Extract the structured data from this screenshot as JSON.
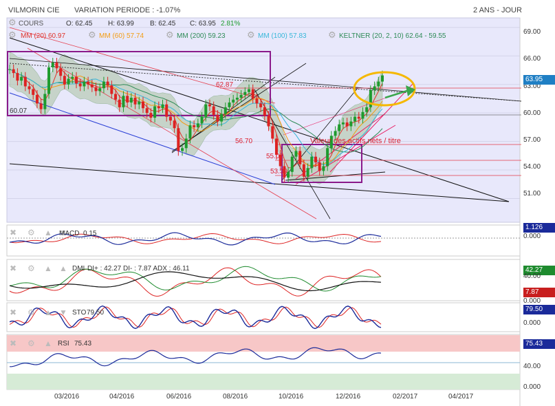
{
  "header": {
    "title": "VILMORIN CIE",
    "variation": "VARIATION PERIODE : -1.07%",
    "period": "2 ANS - JOUR"
  },
  "quote": {
    "cours_label": "COURS",
    "o": "O: 62.45",
    "h": "H: 63.99",
    "b": "B: 62.45",
    "c": "C: 63.95",
    "change": "2.81%"
  },
  "legend": {
    "mm20": "MM (20) 60.97",
    "mm60": "MM (60) 57.74",
    "mm200": "MM (200) 59.23",
    "mm100": "MM (100) 57.83",
    "keltner": "KELTNER (20, 2, 10) 62.64 - 59.55"
  },
  "colors": {
    "mm20": "#e0332a",
    "mm60": "#f39c12",
    "mm200": "#2e8b57",
    "mm100": "#37b7d9",
    "keltner": "#6aa55a",
    "price_badge": "#1f7fc4",
    "bg_plot": "#e8e8fb"
  },
  "annotations": {
    "level_6287": "62.87",
    "level_6007": "60.07",
    "level_5670": "56.70",
    "level_5501": "55.01",
    "level_5339": "53.39",
    "actif_net": "Valeur des actifs nets / titre"
  },
  "panels": {
    "macd_label": "MACD",
    "macd_value": "0.15",
    "macd_badge": "1.126",
    "macd_zero": "0.000",
    "dmi_label": "DMI",
    "dmi_text": "DI+ : 42.27 DI- : 7.87 ADX : 46.11",
    "dmi_badge_plus": "42.27",
    "dmi_badge_minus": "7.87",
    "dmi_tick_top": "40.00",
    "dmi_zero": "0.000",
    "sto_label": "STO",
    "sto_value": "79.50",
    "sto_badge": "79.50",
    "sto_zero": "0.000",
    "rsi_label": "RSI",
    "rsi_value": "75.43",
    "rsi_badge": "75.43",
    "rsi_tick_40": "40.00",
    "rsi_zero": "0.000"
  },
  "price_badge": "63.95",
  "chart_data": {
    "type": "candlestick",
    "ylim": [
      48.5,
      70.0
    ],
    "y_ticks": [
      "69.00",
      "66.00",
      "63.00",
      "60.00",
      "57.00",
      "54.00",
      "51.00"
    ],
    "x_ticks": [
      "03/2016",
      "04/2016",
      "06/2016",
      "08/2016",
      "10/2016",
      "12/2016",
      "02/2017",
      "04/2017"
    ],
    "close_series": [
      64.6,
      64.2,
      63.4,
      63.8,
      62.8,
      62.5,
      61.9,
      61.0,
      60.4,
      62.0,
      64.8,
      65.3,
      64.7,
      63.9,
      63.0,
      63.6,
      63.8,
      63.1,
      62.8,
      63.3,
      63.0,
      62.7,
      62.3,
      62.6,
      63.3,
      62.9,
      62.0,
      61.4,
      60.6,
      61.8,
      61.1,
      61.6,
      60.9,
      61.2,
      60.5,
      60.0,
      59.5,
      60.7,
      60.5,
      60.9,
      59.6,
      59.2,
      58.4,
      56.0,
      56.3,
      57.3,
      58.7,
      58.5,
      58.9,
      59.6,
      60.9,
      60.7,
      59.8,
      59.1,
      59.9,
      60.6,
      61.1,
      61.4,
      61.6,
      61.9,
      62.2,
      62.5,
      61.5,
      61.0,
      60.6,
      59.7,
      58.6,
      57.3,
      55.6,
      54.4,
      53.2,
      53.8,
      55.4,
      56.0,
      54.6,
      53.3,
      54.2,
      55.4,
      54.8,
      53.9,
      54.4,
      56.3,
      57.6,
      58.1,
      58.8,
      59.0,
      58.6,
      59.1,
      59.6,
      59.4,
      60.1,
      60.6,
      62.4,
      62.8,
      63.3,
      63.95
    ],
    "series": [
      {
        "name": "MM (20)",
        "last": 60.97
      },
      {
        "name": "MM (60)",
        "last": 57.74
      },
      {
        "name": "MM (200)",
        "last": 59.23
      },
      {
        "name": "MM (100)",
        "last": 57.83
      }
    ]
  }
}
